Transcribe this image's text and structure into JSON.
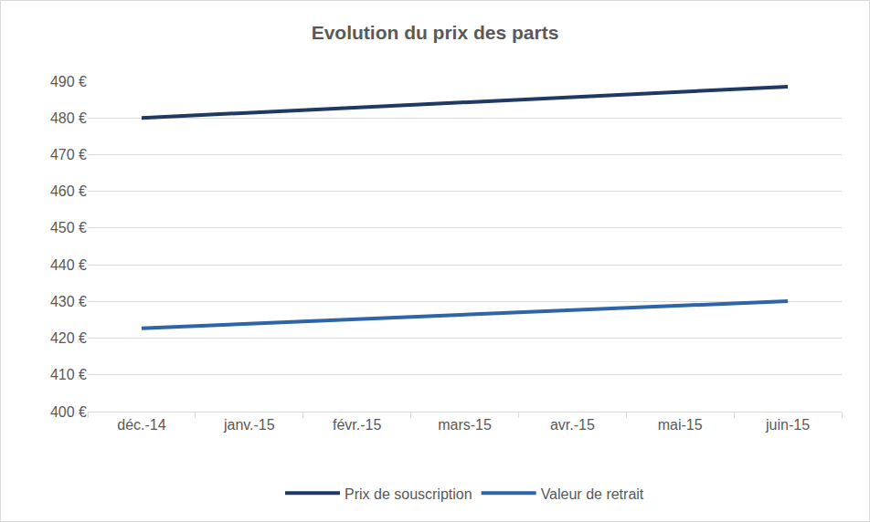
{
  "chart_data": {
    "type": "line",
    "title": "Evolution du prix des parts",
    "categories": [
      "déc.-14",
      "janv.-15",
      "févr.-15",
      "mars-15",
      "avr.-15",
      "mai-15",
      "juin-15"
    ],
    "series": [
      {
        "name": "Prix de souscription",
        "color": "#1f3864",
        "values": [
          480.0,
          481.4,
          482.8,
          484.2,
          485.7,
          487.1,
          488.5
        ]
      },
      {
        "name": "Valeur de retrait",
        "color": "#2e64a8",
        "values": [
          422.7,
          423.9,
          425.1,
          426.4,
          427.6,
          428.8,
          430.1
        ]
      }
    ],
    "ylim": [
      400,
      490
    ],
    "yticks": [
      {
        "value": 400,
        "label": "400 €"
      },
      {
        "value": 410,
        "label": "410 €"
      },
      {
        "value": 420,
        "label": "420 €"
      },
      {
        "value": 430,
        "label": "430 €"
      },
      {
        "value": 440,
        "label": "440 €"
      },
      {
        "value": 450,
        "label": "450 €"
      },
      {
        "value": 460,
        "label": "460 €"
      },
      {
        "value": 470,
        "label": "470 €"
      },
      {
        "value": 480,
        "label": "480 €"
      },
      {
        "value": 490,
        "label": "490 €"
      }
    ],
    "grid": true,
    "legend": "bottom"
  }
}
